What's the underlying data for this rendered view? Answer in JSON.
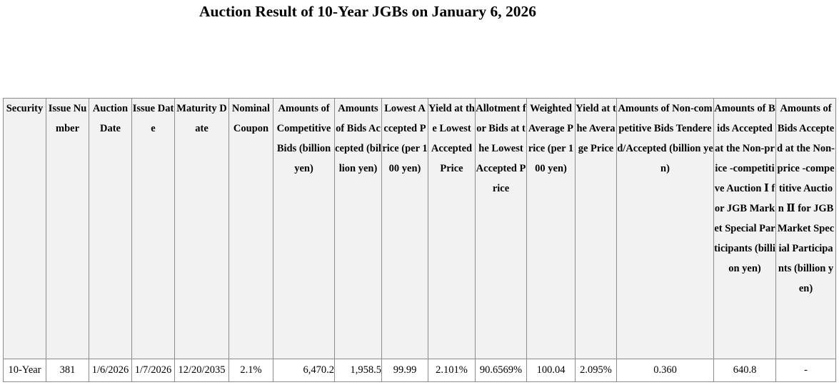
{
  "page": {
    "title": "Auction Result of 10-Year JGBs on January 6, 2026"
  },
  "table": {
    "headers": [
      "Security",
      "Issue Number",
      "Auction Date",
      "Issue Date",
      "Maturity Date",
      "Nominal Coupon",
      "Amounts of Competitive Bids (billion yen)",
      "Amounts of Bids Accepted (billion yen)",
      "Lowest Accepted Price (per 100 yen)",
      "Yield at the Lowest Accepted Price",
      "Allotment for Bids at the Lowest Accepted Price",
      "Weighted Average Price (per 100 yen)",
      "Yield at the Average Price",
      "Amounts of Non-competitive Bids Tendered/Accepted (billion yen)",
      "Amounts of Bids Accepted at the Non-price -competitive Auction Ⅰ for JGB Market Special Participants (billion yen)",
      "Amounts of Bids Accepted at the Non-price -competitive Auction Ⅱ for JGB Market Special Participants (billion yen)"
    ],
    "row": {
      "security": "10-Year",
      "issue_number": "381",
      "auction_date": "1/6/2026",
      "issue_date": "1/7/2026",
      "maturity_date": "12/20/2035",
      "nominal_coupon": "2.1%",
      "competitive_bids": "6,470.2",
      "bids_accepted": "1,958.5",
      "lowest_accepted_price": "99.99",
      "yield_lowest": "2.101%",
      "allotment_lowest": "90.6569%",
      "weighted_average_price": "100.04",
      "yield_average": "2.095%",
      "non_competitive_bids": "0.360",
      "non_price_auction_1": "640.8",
      "non_price_auction_2": "-"
    }
  }
}
